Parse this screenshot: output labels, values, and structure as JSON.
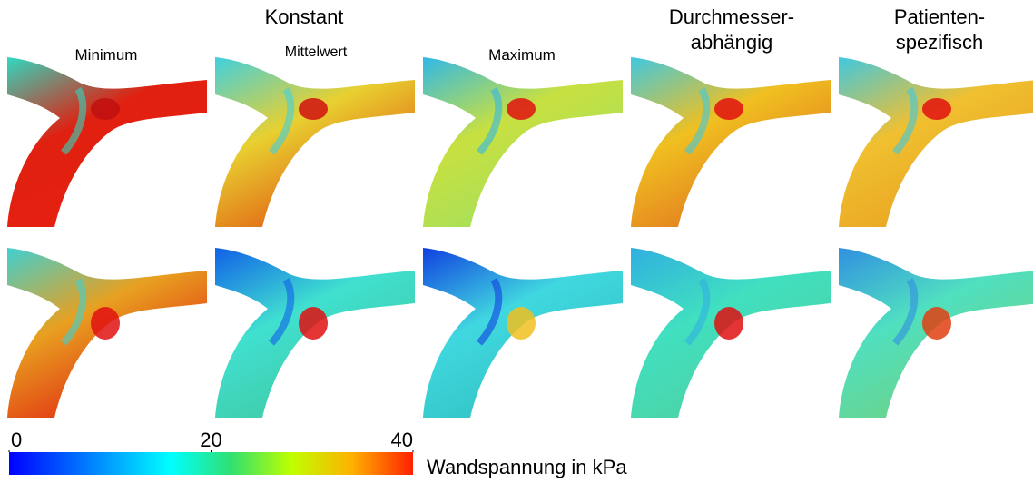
{
  "header": {
    "group_title": "Konstant",
    "columns": [
      [
        "Minimum"
      ],
      [
        "Mittelwert"
      ],
      [
        "Maximum"
      ],
      [
        "Durchmesser-",
        "abhängig"
      ],
      [
        "Patienten-",
        "spezifisch"
      ]
    ]
  },
  "colorbar": {
    "lim": [
      0,
      40
    ],
    "ticks": [
      0,
      20,
      40
    ],
    "label": "Wandspannung in kPa"
  }
}
